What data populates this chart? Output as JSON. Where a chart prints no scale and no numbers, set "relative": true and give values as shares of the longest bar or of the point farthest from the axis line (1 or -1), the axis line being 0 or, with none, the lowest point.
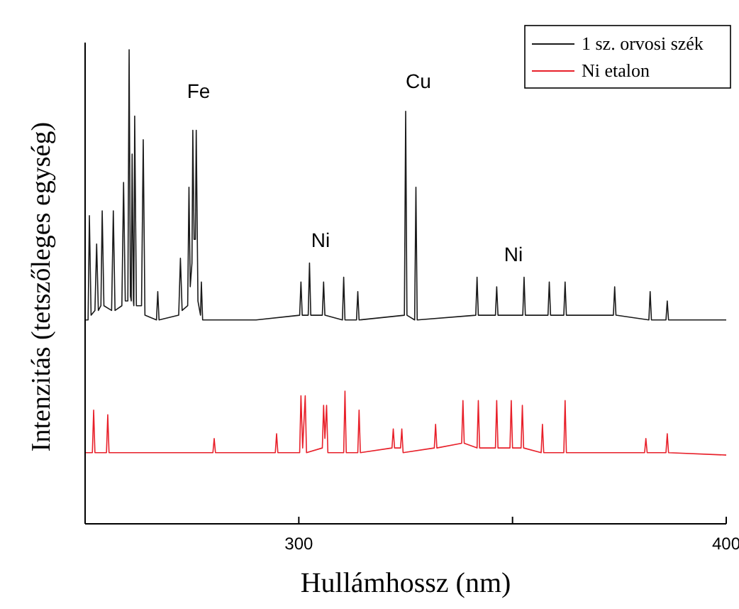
{
  "chart_data": {
    "type": "line",
    "relative": true,
    "xlabel": "Hullámhossz (nm)",
    "ylabel": "Intenzitás (tetszőleges egység)",
    "xlim": [
      250,
      400
    ],
    "xticks": [
      300,
      {
        "value": 350,
        "label": null
      },
      400
    ],
    "legend": "top right",
    "grid": false,
    "annotations": [
      "Fe",
      "Ni",
      "Cu",
      "Ni"
    ],
    "series": [
      {
        "name": "1 sz. orvosi szék",
        "color": "#1a1a1a",
        "x": [
          250,
          250.7,
          251,
          251.4,
          252.3,
          252.7,
          253.1,
          253.7,
          254,
          254.4,
          256.2,
          256.6,
          257,
          258.6,
          259,
          259.4,
          260,
          260.3,
          260.6,
          260.8,
          261,
          261.3,
          261.4,
          261.6,
          262,
          263.2,
          263.6,
          264,
          266.7,
          267,
          267.3,
          271.9,
          272.3,
          272.7,
          274,
          274.3,
          274.6,
          275,
          275.2,
          275.5,
          275.8,
          276,
          276.4,
          277,
          277.2,
          277.5,
          290,
          300.2,
          300.5,
          300.8,
          302.2,
          302.5,
          302.8,
          305.5,
          305.8,
          306.1,
          310.2,
          310.5,
          310.8,
          313.5,
          313.8,
          314.1,
          324.7,
          325,
          325.3,
          327.1,
          327.4,
          327.7,
          341.4,
          341.7,
          342,
          346,
          346.3,
          346.6,
          352.4,
          352.7,
          353,
          358.3,
          358.6,
          358.9,
          362,
          362.3,
          362.6,
          373.6,
          373.9,
          374.2,
          381.9,
          382.2,
          382.5,
          385.9,
          386.2,
          386.5,
          400
        ],
        "values": [
          0.43,
          0.43,
          0.65,
          0.44,
          0.45,
          0.59,
          0.45,
          0.46,
          0.66,
          0.46,
          0.45,
          0.66,
          0.45,
          0.46,
          0.72,
          0.47,
          0.47,
          1.0,
          0.48,
          0.47,
          0.78,
          0.47,
          0.46,
          0.86,
          0.46,
          0.46,
          0.81,
          0.44,
          0.43,
          0.49,
          0.43,
          0.44,
          0.56,
          0.45,
          0.46,
          0.71,
          0.5,
          0.55,
          0.83,
          0.6,
          0.6,
          0.83,
          0.47,
          0.44,
          0.51,
          0.43,
          0.43,
          0.44,
          0.51,
          0.44,
          0.44,
          0.55,
          0.44,
          0.44,
          0.51,
          0.44,
          0.43,
          0.52,
          0.43,
          0.43,
          0.49,
          0.43,
          0.44,
          0.87,
          0.44,
          0.43,
          0.71,
          0.43,
          0.44,
          0.52,
          0.44,
          0.44,
          0.5,
          0.44,
          0.44,
          0.52,
          0.44,
          0.44,
          0.51,
          0.44,
          0.44,
          0.51,
          0.44,
          0.44,
          0.5,
          0.44,
          0.43,
          0.49,
          0.43,
          0.43,
          0.47,
          0.43,
          0.43
        ]
      },
      {
        "name": "Ni etalon",
        "color": "#e8202a",
        "x": [
          250,
          251.7,
          252,
          252.3,
          255,
          255.3,
          255.6,
          279.9,
          280.2,
          280.5,
          294.5,
          294.8,
          295.1,
          300.2,
          300.5,
          300.9,
          301.5,
          301.8,
          305.5,
          305.8,
          306.1,
          306.5,
          306.8,
          310.5,
          310.8,
          311.1,
          313.8,
          314.1,
          314.4,
          321.8,
          322.1,
          322.4,
          323.8,
          324.1,
          324.4,
          331.7,
          332,
          332.3,
          338.1,
          338.4,
          338.7,
          341.7,
          342,
          342.3,
          346,
          346.3,
          346.6,
          349.4,
          349.7,
          350,
          352,
          352.3,
          352.6,
          356.7,
          357,
          357.3,
          362,
          362.3,
          362.6,
          380.9,
          381.2,
          381.5,
          385.9,
          386.2,
          386.5,
          400
        ],
        "values": [
          0.15,
          0.15,
          0.24,
          0.15,
          0.15,
          0.23,
          0.15,
          0.15,
          0.18,
          0.15,
          0.15,
          0.19,
          0.15,
          0.15,
          0.27,
          0.16,
          0.27,
          0.15,
          0.16,
          0.25,
          0.18,
          0.25,
          0.15,
          0.15,
          0.28,
          0.15,
          0.15,
          0.24,
          0.15,
          0.16,
          0.2,
          0.16,
          0.16,
          0.2,
          0.15,
          0.16,
          0.21,
          0.16,
          0.17,
          0.26,
          0.17,
          0.16,
          0.26,
          0.16,
          0.16,
          0.26,
          0.16,
          0.16,
          0.26,
          0.16,
          0.16,
          0.25,
          0.16,
          0.15,
          0.21,
          0.15,
          0.15,
          0.26,
          0.15,
          0.15,
          0.18,
          0.15,
          0.15,
          0.19,
          0.15,
          0.145
        ]
      }
    ]
  }
}
